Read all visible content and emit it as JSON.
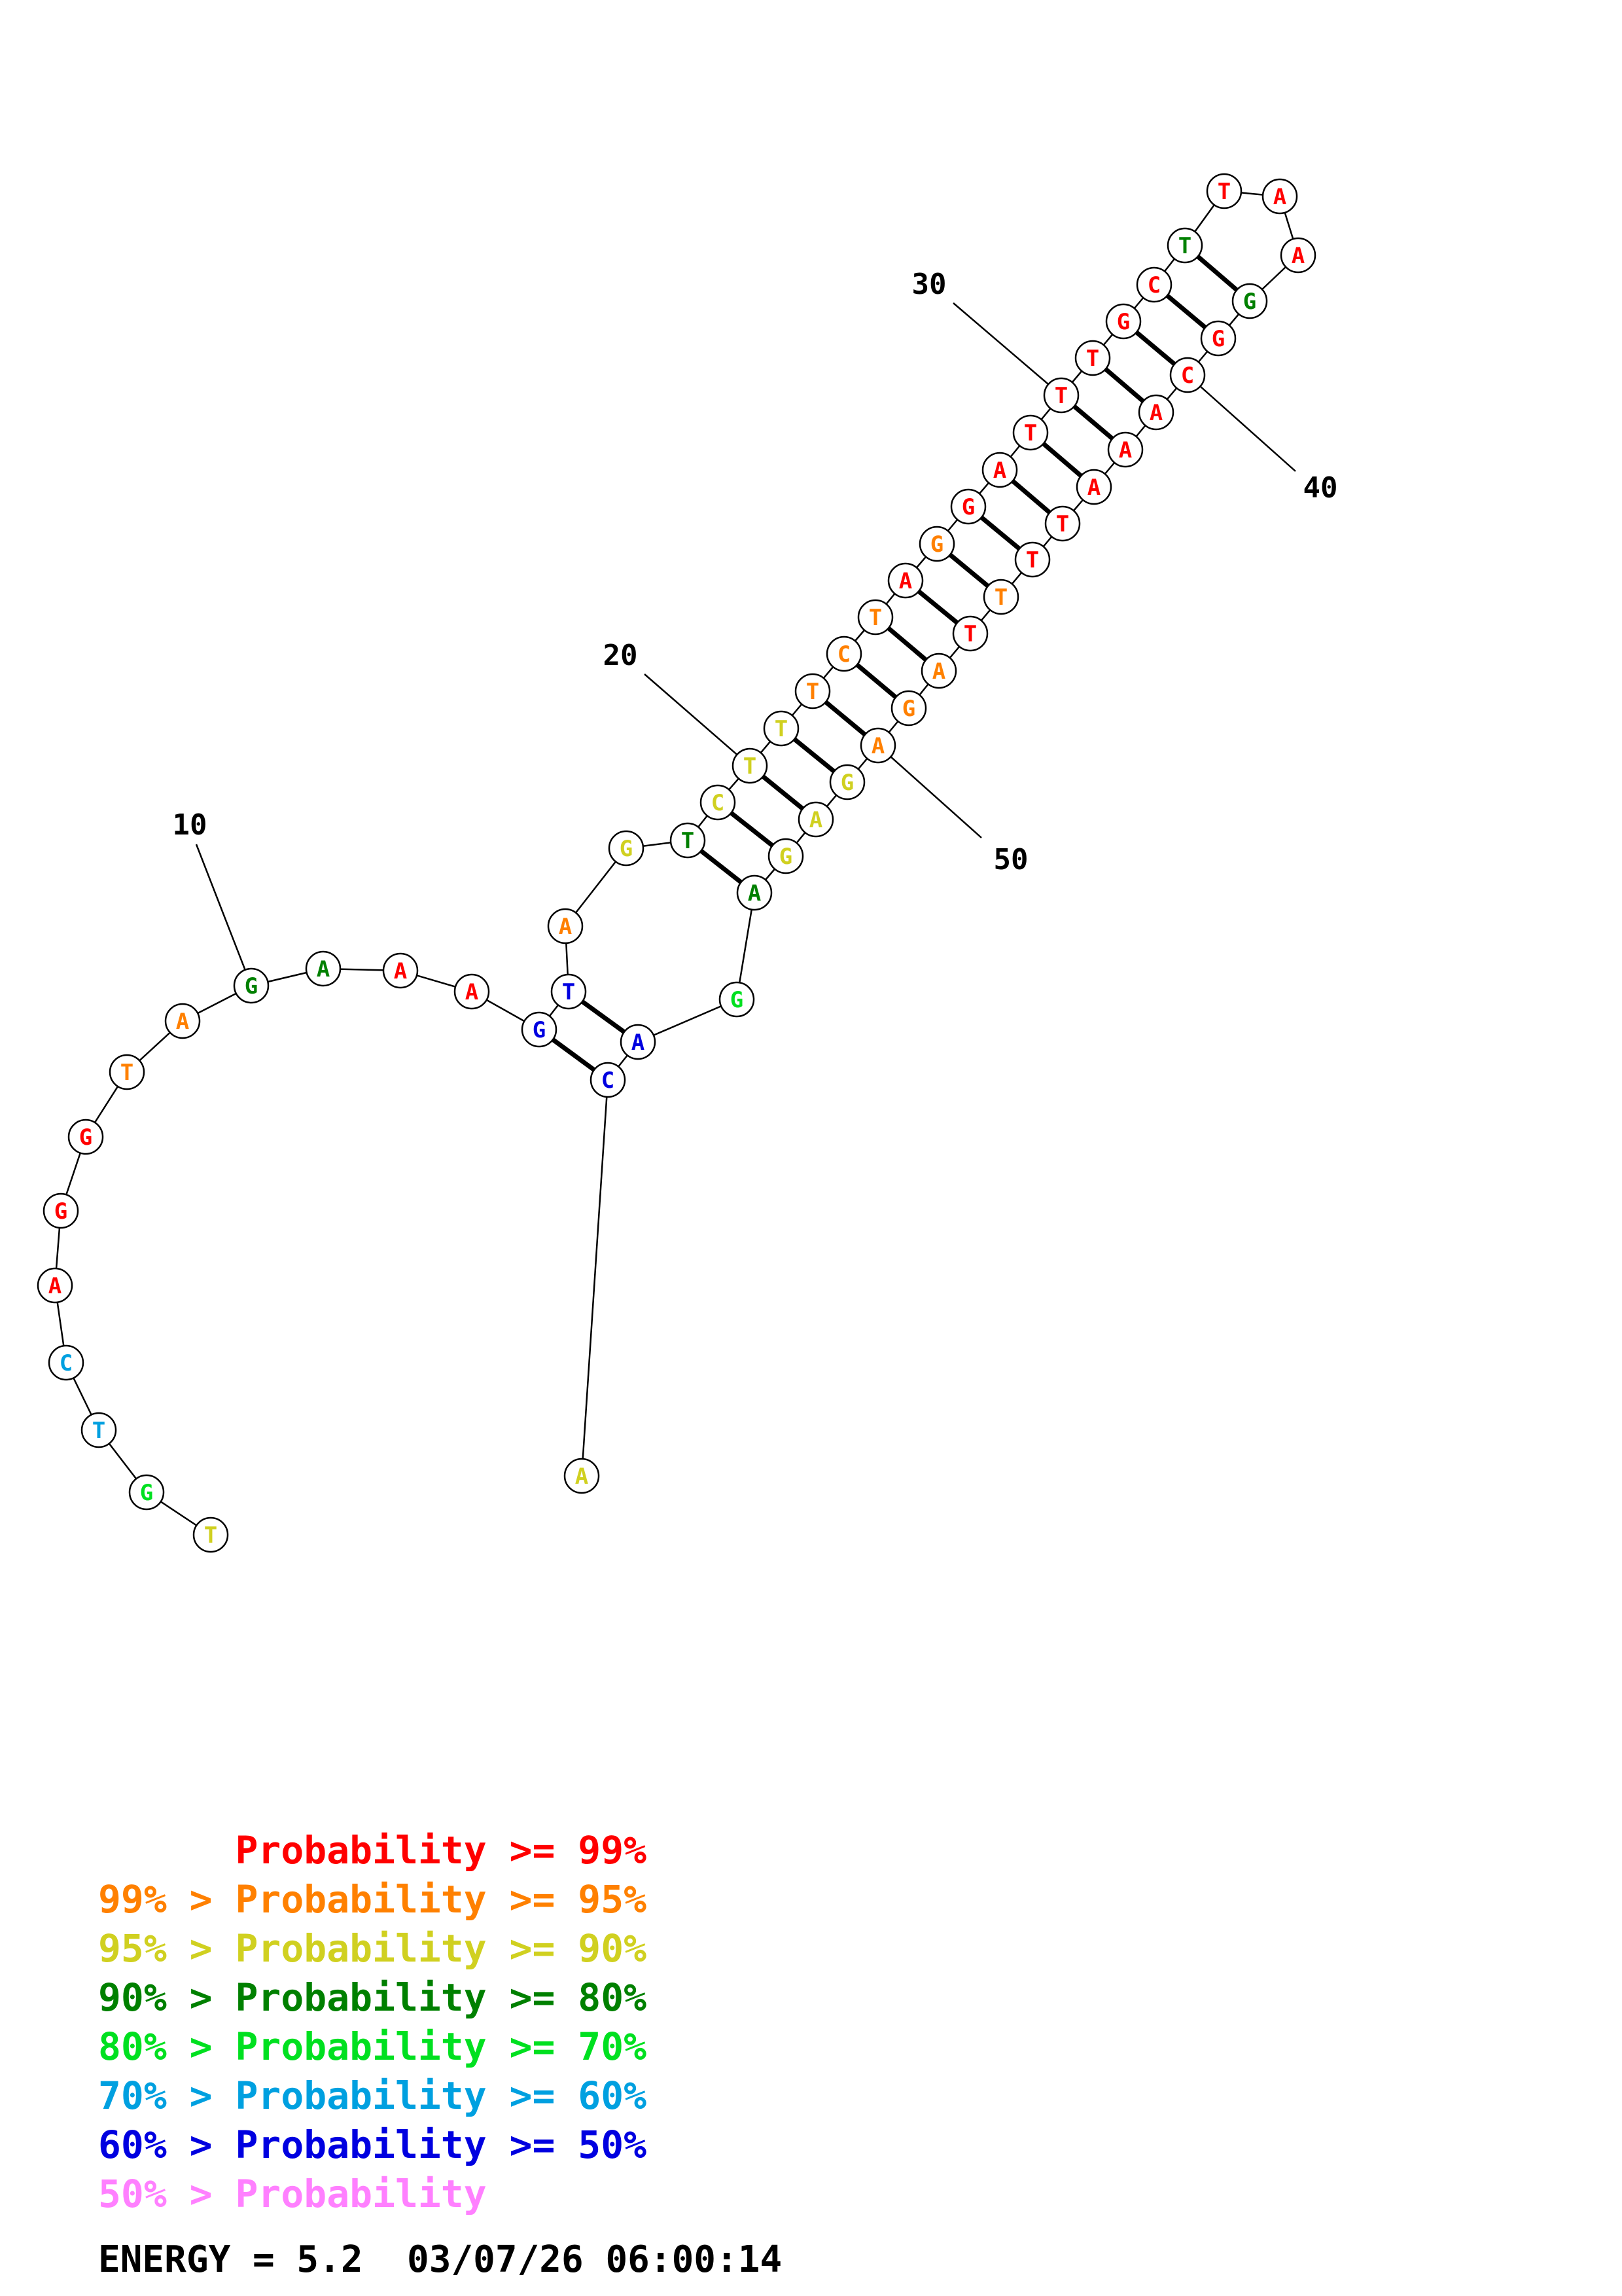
{
  "colors": {
    "p99": "#ff0000",
    "p95": "#ff8000",
    "p90": "#d0d020",
    "p80": "#008000",
    "p70": "#00e020",
    "p60": "#00a0e0",
    "p50": "#0000e0",
    "plow": "#ff80ff"
  },
  "sequence": [
    {
      "n": 1,
      "base": "T",
      "cls": "p90"
    },
    {
      "n": 2,
      "base": "G",
      "cls": "p70"
    },
    {
      "n": 3,
      "base": "T",
      "cls": "p60"
    },
    {
      "n": 4,
      "base": "C",
      "cls": "p60"
    },
    {
      "n": 5,
      "base": "A",
      "cls": "p99"
    },
    {
      "n": 6,
      "base": "G",
      "cls": "p99"
    },
    {
      "n": 7,
      "base": "G",
      "cls": "p99"
    },
    {
      "n": 8,
      "base": "T",
      "cls": "p95"
    },
    {
      "n": 9,
      "base": "A",
      "cls": "p95"
    },
    {
      "n": 10,
      "base": "G",
      "cls": "p80"
    },
    {
      "n": 11,
      "base": "A",
      "cls": "p80"
    },
    {
      "n": 12,
      "base": "A",
      "cls": "p99"
    },
    {
      "n": 13,
      "base": "A",
      "cls": "p99"
    },
    {
      "n": 14,
      "base": "G",
      "cls": "p50"
    },
    {
      "n": 15,
      "base": "T",
      "cls": "p50"
    },
    {
      "n": 16,
      "base": "A",
      "cls": "p95"
    },
    {
      "n": 17,
      "base": "G",
      "cls": "p90"
    },
    {
      "n": 18,
      "base": "T",
      "cls": "p80"
    },
    {
      "n": 19,
      "base": "C",
      "cls": "p90"
    },
    {
      "n": 20,
      "base": "T",
      "cls": "p90"
    },
    {
      "n": 21,
      "base": "T",
      "cls": "p90"
    },
    {
      "n": 22,
      "base": "T",
      "cls": "p95"
    },
    {
      "n": 23,
      "base": "C",
      "cls": "p95"
    },
    {
      "n": 24,
      "base": "T",
      "cls": "p95"
    },
    {
      "n": 25,
      "base": "A",
      "cls": "p99"
    },
    {
      "n": 26,
      "base": "G",
      "cls": "p95"
    },
    {
      "n": 27,
      "base": "G",
      "cls": "p99"
    },
    {
      "n": 28,
      "base": "A",
      "cls": "p99"
    },
    {
      "n": 29,
      "base": "T",
      "cls": "p99"
    },
    {
      "n": 30,
      "base": "T",
      "cls": "p99"
    },
    {
      "n": 31,
      "base": "T",
      "cls": "p99"
    },
    {
      "n": 32,
      "base": "G",
      "cls": "p99"
    },
    {
      "n": 33,
      "base": "C",
      "cls": "p99"
    },
    {
      "n": 34,
      "base": "T",
      "cls": "p80"
    },
    {
      "n": 35,
      "base": "T",
      "cls": "p99"
    },
    {
      "n": 36,
      "base": "A",
      "cls": "p99"
    },
    {
      "n": 37,
      "base": "A",
      "cls": "p99"
    },
    {
      "n": 38,
      "base": "G",
      "cls": "p80"
    },
    {
      "n": 39,
      "base": "G",
      "cls": "p99"
    },
    {
      "n": 40,
      "base": "C",
      "cls": "p99"
    },
    {
      "n": 41,
      "base": "A",
      "cls": "p99"
    },
    {
      "n": 42,
      "base": "A",
      "cls": "p99"
    },
    {
      "n": 43,
      "base": "A",
      "cls": "p99"
    },
    {
      "n": 44,
      "base": "T",
      "cls": "p99"
    },
    {
      "n": 45,
      "base": "T",
      "cls": "p99"
    },
    {
      "n": 46,
      "base": "T",
      "cls": "p95"
    },
    {
      "n": 47,
      "base": "T",
      "cls": "p99"
    },
    {
      "n": 48,
      "base": "A",
      "cls": "p95"
    },
    {
      "n": 49,
      "base": "G",
      "cls": "p95"
    },
    {
      "n": 50,
      "base": "A",
      "cls": "p95"
    },
    {
      "n": 51,
      "base": "G",
      "cls": "p90"
    },
    {
      "n": 52,
      "base": "A",
      "cls": "p90"
    },
    {
      "n": 53,
      "base": "G",
      "cls": "p90"
    },
    {
      "n": 54,
      "base": "A",
      "cls": "p80"
    },
    {
      "n": 55,
      "base": "G",
      "cls": "p70"
    },
    {
      "n": 56,
      "base": "A",
      "cls": "p50"
    },
    {
      "n": 57,
      "base": "C",
      "cls": "p50"
    },
    {
      "n": 58,
      "base": "A",
      "cls": "p90"
    }
  ],
  "pairs": [
    [
      14,
      57
    ],
    [
      15,
      56
    ],
    [
      18,
      54
    ],
    [
      19,
      53
    ],
    [
      20,
      52
    ],
    [
      21,
      51
    ],
    [
      22,
      50
    ],
    [
      23,
      49
    ],
    [
      24,
      48
    ],
    [
      25,
      47
    ],
    [
      26,
      46
    ],
    [
      27,
      45
    ],
    [
      28,
      44
    ],
    [
      29,
      43
    ],
    [
      30,
      42
    ],
    [
      31,
      41
    ],
    [
      32,
      40
    ],
    [
      33,
      39
    ],
    [
      34,
      38
    ]
  ],
  "tick_labels": [
    {
      "n": 10,
      "text": "10"
    },
    {
      "n": 20,
      "text": "20"
    },
    {
      "n": 30,
      "text": "30"
    },
    {
      "n": 40,
      "text": "40"
    },
    {
      "n": 50,
      "text": "50"
    }
  ],
  "legend": [
    {
      "cls": "p99",
      "prefix": "    ",
      "text": "Probability >= 99%"
    },
    {
      "cls": "p95",
      "prefix": "99% > ",
      "text": "Probability >= 95%"
    },
    {
      "cls": "p90",
      "prefix": "95% > ",
      "text": "Probability >= 90%"
    },
    {
      "cls": "p80",
      "prefix": "90% > ",
      "text": "Probability >= 80%"
    },
    {
      "cls": "p70",
      "prefix": "80% > ",
      "text": "Probability >= 70%"
    },
    {
      "cls": "p60",
      "prefix": "70% > ",
      "text": "Probability >= 60%"
    },
    {
      "cls": "p50",
      "prefix": "60% > ",
      "text": "Probability >= 50%"
    },
    {
      "cls": "plow",
      "prefix": "50% > ",
      "text": "Probability"
    }
  ],
  "energy": "ENERGY = 5.2  03/07/26 06:00:14"
}
